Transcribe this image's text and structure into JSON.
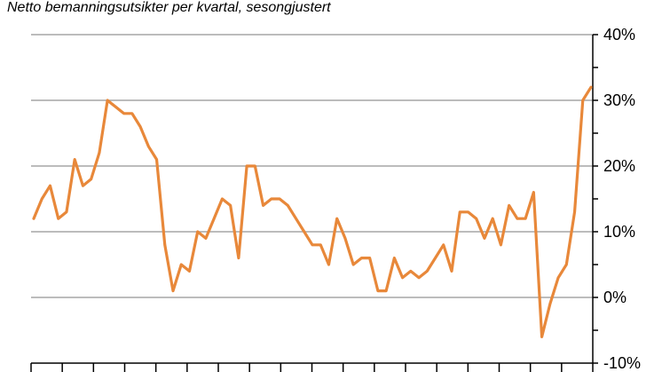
{
  "chart_data": {
    "type": "line",
    "title": "Netto bemanningsutsikter per kvartal, sesongjustert",
    "xlabel": "",
    "ylabel": "",
    "ylim": [
      -10,
      40
    ],
    "y_ticks": [
      -10,
      0,
      10,
      20,
      30,
      40
    ],
    "y_tick_labels": [
      "-10%",
      "0%",
      "10%",
      "20%",
      "30%",
      "40%"
    ],
    "y_axis_side": "right",
    "grid": "horizontal",
    "colors": {
      "line": "#E8883A",
      "grid": "#A6A6A6",
      "axis": "#000000"
    },
    "series": [
      {
        "values": [
          12,
          15,
          17,
          12,
          13,
          21,
          17,
          18,
          22,
          30,
          29,
          28,
          28,
          26,
          23,
          21,
          8,
          1,
          5,
          4,
          10,
          9,
          12,
          15,
          14,
          6,
          20,
          20,
          14,
          15,
          15,
          14,
          12,
          10,
          8,
          8,
          5,
          12,
          9,
          5,
          6,
          6,
          1,
          1,
          6,
          3,
          4,
          3,
          4,
          6,
          8,
          4,
          13,
          13,
          12,
          9,
          12,
          8,
          14,
          12,
          12,
          16,
          -6,
          -1,
          3,
          5,
          13,
          30,
          32
        ]
      }
    ]
  }
}
